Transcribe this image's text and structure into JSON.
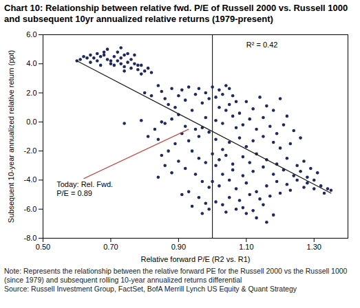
{
  "chart_data": {
    "type": "scatter",
    "title": "Chart 10: Relationship between relative fwd. P/E of Russell 2000 vs. Russell 1000 and subsequent 10yr annualized relative returns (1979-present)",
    "x_label": "Relative forward P/E (R2 vs. R1)",
    "y_label": "Subsequent 10-year annualized relative return (ppt)",
    "notes": [
      "Note: Represents the relationship between the relative forward PE for the Russell 2000 vs the Russell 1000 (since 1979) and subsequent rolling 10-year annualized returns differential",
      "Source: Russell Investment Group, FactSet, BofA Merrill Lynch US Equity & Quant Strategy"
    ],
    "color": "#1f2a5c",
    "xlim": [
      0.5,
      1.4
    ],
    "xticks": [
      {
        "value": 0.5,
        "label": "0.50"
      },
      {
        "value": 0.7,
        "label": "0.70"
      },
      {
        "value": 0.9,
        "label": "0.90"
      },
      {
        "value": 1.1,
        "label": "1.10"
      },
      {
        "value": 1.3,
        "label": "1.30"
      }
    ],
    "ylim": [
      -8,
      6
    ],
    "yticks": [
      {
        "value": -8,
        "label": "-8.0"
      },
      {
        "value": -6,
        "label": "-6.0"
      },
      {
        "value": -4,
        "label": "-4.0"
      },
      {
        "value": -2,
        "label": "-2.0"
      },
      {
        "value": 0,
        "label": "0.0"
      },
      {
        "value": 2,
        "label": "2.0"
      },
      {
        "value": 4,
        "label": "4.0"
      },
      {
        "value": 6,
        "label": "6.0"
      }
    ],
    "x": [
      0.6,
      0.61,
      0.62,
      0.63,
      0.64,
      0.65,
      0.66,
      0.67,
      0.68,
      0.69,
      0.7,
      0.71,
      0.72,
      0.73,
      0.74,
      0.72,
      0.7,
      0.71,
      0.73,
      0.74,
      0.75,
      0.76,
      0.77,
      0.78,
      0.76,
      0.74,
      0.78,
      0.79,
      0.68,
      0.69,
      0.66,
      0.64,
      0.73,
      0.75,
      0.77,
      0.79,
      0.8,
      0.81,
      0.82,
      0.67,
      0.8,
      0.82,
      0.84,
      0.85,
      0.86,
      0.88,
      0.87,
      0.89,
      0.9,
      0.91,
      0.92,
      0.93,
      0.94,
      0.95,
      0.96,
      0.97,
      0.98,
      0.99,
      0.9,
      0.88,
      0.86,
      0.85,
      0.83,
      0.81,
      0.79,
      0.74,
      0.92,
      0.91,
      0.93,
      0.95,
      0.96,
      0.97,
      0.98,
      0.99,
      0.89,
      0.87,
      0.85,
      0.84,
      0.94,
      0.96,
      0.98,
      0.92,
      0.9,
      0.88,
      0.86,
      0.84,
      0.95,
      0.97,
      0.99,
      0.93,
      0.91,
      0.96,
      0.98,
      0.94,
      0.99,
      0.97,
      1.0,
      1.01,
      1.02,
      1.03,
      1.04,
      1.05,
      1.06,
      1.07,
      1.02,
      1.04,
      1.05,
      1.08,
      1.1,
      1.12,
      1.14,
      1.16,
      1.18,
      1.2,
      1.22,
      1.15,
      1.11,
      1.09,
      1.13,
      1.07,
      1.03,
      1.01,
      1.06,
      1.17,
      1.19,
      1.21,
      1.24,
      1.26,
      1.23,
      1.2,
      1.18,
      1.15,
      1.12,
      1.1,
      1.08,
      1.05,
      1.03,
      1.01,
      1.0,
      1.02,
      1.04,
      1.06,
      1.09,
      1.11,
      1.13,
      1.16,
      1.19,
      1.22,
      1.25,
      1.27,
      1.29,
      1.31,
      1.28,
      1.26,
      1.24,
      1.21,
      1.18,
      1.15,
      1.12,
      1.09,
      1.06,
      1.03,
      1.01,
      1.0,
      1.02,
      1.05,
      1.07,
      1.1,
      1.13,
      1.16,
      1.19,
      1.22,
      1.25,
      1.28,
      1.3,
      1.32,
      1.34,
      1.35,
      1.33,
      1.3,
      1.27,
      1.23,
      1.2,
      1.17,
      1.14,
      1.11,
      1.08,
      1.05,
      1.03,
      1.01,
      1.09,
      1.12,
      1.15,
      1.18,
      1.16,
      1.13,
      1.1,
      1.07,
      1.04
    ],
    "values": [
      4.2,
      4.3,
      4.5,
      4.4,
      4.6,
      4.4,
      4.7,
      4.5,
      4.6,
      4.3,
      4.2,
      4.5,
      4.8,
      5.1,
      4.6,
      4.2,
      4.0,
      3.9,
      4.0,
      3.8,
      4.1,
      4.3,
      4.0,
      3.9,
      3.7,
      3.5,
      3.6,
      3.3,
      4.8,
      5.0,
      4.2,
      4.1,
      4.4,
      4.7,
      4.6,
      3.9,
      3.5,
      3.7,
      3.4,
      3.9,
      2.0,
      1.8,
      2.5,
      2.1,
      1.6,
      2.3,
      1.2,
      1.0,
      1.8,
      2.2,
      1.5,
      2.4,
      0.8,
      1.9,
      2.3,
      1.3,
      2.0,
      1.6,
      0.5,
      0.2,
      -0.1,
      0.0,
      -0.5,
      -1.0,
      0.1,
      -0.1,
      -0.3,
      -0.8,
      -1.3,
      -0.5,
      -1.0,
      -0.4,
      0.3,
      -0.7,
      -1.5,
      -2.0,
      -2.3,
      -1.2,
      -2.0,
      -2.5,
      -2.8,
      -3.2,
      -2.7,
      -3.5,
      -3.0,
      -3.8,
      -3.6,
      -4.1,
      -4.5,
      -4.8,
      -5.0,
      -5.2,
      -5.6,
      -5.8,
      -6.0,
      -6.3,
      2.4,
      1.7,
      2.2,
      1.9,
      2.5,
      2.3,
      1.8,
      1.4,
      1.0,
      0.8,
      1.2,
      0.6,
      1.4,
      0.9,
      1.7,
      1.1,
      0.8,
      1.6,
      0.4,
      0.3,
      0.2,
      -0.2,
      -0.5,
      -0.4,
      -0.1,
      0.1,
      0.4,
      -0.3,
      -0.8,
      -0.2,
      -0.6,
      -1.1,
      -1.5,
      -1.8,
      -1.4,
      -1.0,
      -1.3,
      -1.7,
      -1.1,
      -1.4,
      -1.9,
      -1.2,
      -2.2,
      -2.6,
      -2.3,
      -2.9,
      -2.4,
      -2.8,
      -2.2,
      -2.6,
      -2.9,
      -2.5,
      -3.0,
      -2.7,
      -3.2,
      -3.5,
      -3.8,
      -3.4,
      -3.7,
      -3.3,
      -3.6,
      -3.1,
      -3.4,
      -3.7,
      -3.3,
      -3.6,
      -3.0,
      -4.1,
      -4.4,
      -4.0,
      -4.6,
      -4.2,
      -4.8,
      -4.4,
      -4.1,
      -4.3,
      -4.0,
      -4.2,
      -4.0,
      -4.4,
      -4.6,
      -4.7,
      -4.9,
      -4.6,
      -4.5,
      -4.7,
      -4.9,
      -5.1,
      -5.3,
      -5.0,
      -5.4,
      -5.2,
      -5.7,
      -5.5,
      -5.9,
      -6.1,
      -5.7,
      -6.4,
      -6.9,
      -6.6,
      -6.3,
      -6.0,
      -6.2
    ],
    "fit_line": {
      "x": [
        0.6,
        1.35
      ],
      "values": [
        4.2,
        -4.9
      ],
      "color": "#1a1a1a"
    },
    "reference_line_x": 1.0,
    "r_squared": {
      "text": "R² = 0.42",
      "x": 1.1,
      "y": 5.3
    },
    "annotation": {
      "lines": [
        "Today: Rel. Fwd.",
        "P/E = 0.89"
      ],
      "x": 0.54,
      "y": -4.6,
      "arrow_from": [
        0.62,
        -3.9
      ],
      "arrow_to": [
        0.93,
        -0.5
      ],
      "color": "#c0504d"
    }
  }
}
